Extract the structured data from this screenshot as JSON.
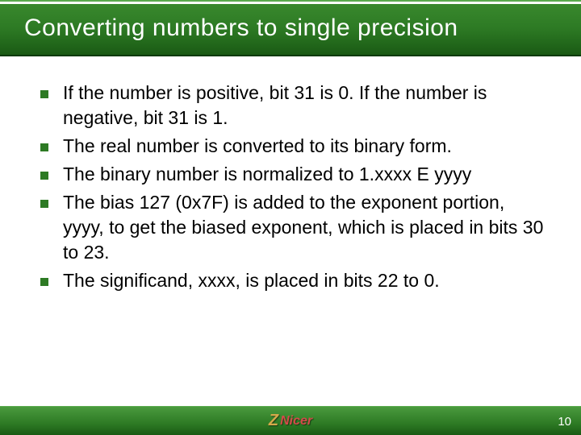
{
  "title": "Converting numbers to single precision",
  "bullets": [
    "If the number is positive, bit 31 is 0. If the number is negative, bit 31 is 1.",
    "The real number is converted to its binary form.",
    "The binary number is normalized to 1.xxxx E yyyy",
    "The bias 127 (0x7F) is added to the exponent portion, yyyy, to get the biased exponent, which is placed in bits 30 to 23.",
    "The significand, xxxx, is placed in bits 22 to 0."
  ],
  "logo": {
    "z": "Z",
    "nicer": "Nicer"
  },
  "page_number": "10",
  "colors": {
    "header_gradient_top": "#3a8a2e",
    "header_gradient_bottom": "#1a5a14",
    "bullet_marker": "#2d7a24",
    "title_text": "#ffffff",
    "body_text": "#000000",
    "page_number": "#ffffff"
  }
}
